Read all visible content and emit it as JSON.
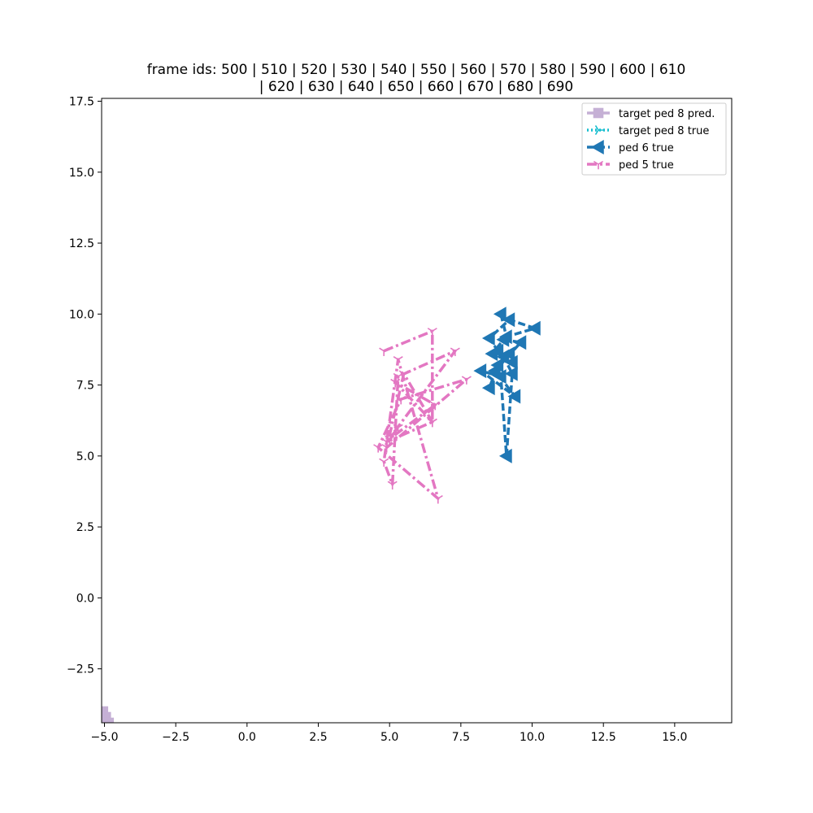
{
  "chart_data": {
    "type": "line",
    "title_lines": [
      "frame ids: 500 | 510 | 520 | 530 | 540 | 550 | 560 | 570 | 580 | 590 | 600 | 610",
      "| 620 | 630 | 640 | 650 | 660 | 670 | 680 | 690"
    ],
    "xlim": [
      -5.1,
      17.0
    ],
    "ylim": [
      -4.4,
      17.6
    ],
    "xticks": [
      -5.0,
      -2.5,
      0.0,
      2.5,
      5.0,
      7.5,
      10.0,
      12.5,
      15.0
    ],
    "xtick_labels": [
      "−5.0",
      "−2.5",
      "0.0",
      "2.5",
      "5.0",
      "7.5",
      "10.0",
      "12.5",
      "15.0"
    ],
    "yticks": [
      -2.5,
      0.0,
      2.5,
      5.0,
      7.5,
      10.0,
      12.5,
      15.0,
      17.5
    ],
    "ytick_labels": [
      "−2.5",
      "0.0",
      "2.5",
      "5.0",
      "7.5",
      "10.0",
      "12.5",
      "15.0",
      "17.5"
    ],
    "grid": false,
    "legend_position": "top-right",
    "series": [
      {
        "name": "target ped 8 pred.",
        "color": "#c5b0d5",
        "marker": "square",
        "line": "solid",
        "x": [
          -5.05,
          -4.95,
          -4.85
        ],
        "y": [
          -4.0,
          -4.2,
          -4.4
        ]
      },
      {
        "name": "target ped 8 true",
        "color": "#17becf",
        "marker": "tri-right",
        "line": "dotted",
        "x": [],
        "y": []
      },
      {
        "name": "ped 6 true",
        "color": "#1f77b4",
        "marker": "triangle-left",
        "line": "dashed",
        "x": [
          8.9,
          9.1,
          10.1,
          9.2,
          8.5,
          8.8,
          9.3,
          8.6,
          9.0,
          9.6,
          8.7,
          9.4,
          8.2,
          8.9,
          9.1,
          9.3,
          9.0,
          8.5,
          8.8,
          9.2
        ],
        "y": [
          10.0,
          9.2,
          9.5,
          9.8,
          9.15,
          8.7,
          8.3,
          8.6,
          9.1,
          9.0,
          8.0,
          7.1,
          8.0,
          7.8,
          5.0,
          7.9,
          8.5,
          7.4,
          8.2,
          8.6
        ]
      },
      {
        "name": "ped 5 true",
        "color": "#e377c2",
        "marker": "tri-down",
        "line": "dashdot",
        "x": [
          4.8,
          6.5,
          6.5,
          4.9,
          7.3,
          5.3,
          5.1,
          4.8,
          5.3,
          6.7,
          4.6,
          5.4,
          7.7,
          4.9,
          5.5,
          6.5,
          5.2,
          6.6,
          5.0,
          5.3
        ],
        "y": [
          8.7,
          9.4,
          6.2,
          5.5,
          8.7,
          7.8,
          4.0,
          4.8,
          8.4,
          3.5,
          5.3,
          7.0,
          7.7,
          5.3,
          7.9,
          6.2,
          7.6,
          6.8,
          5.6,
          6.0
        ]
      }
    ]
  }
}
